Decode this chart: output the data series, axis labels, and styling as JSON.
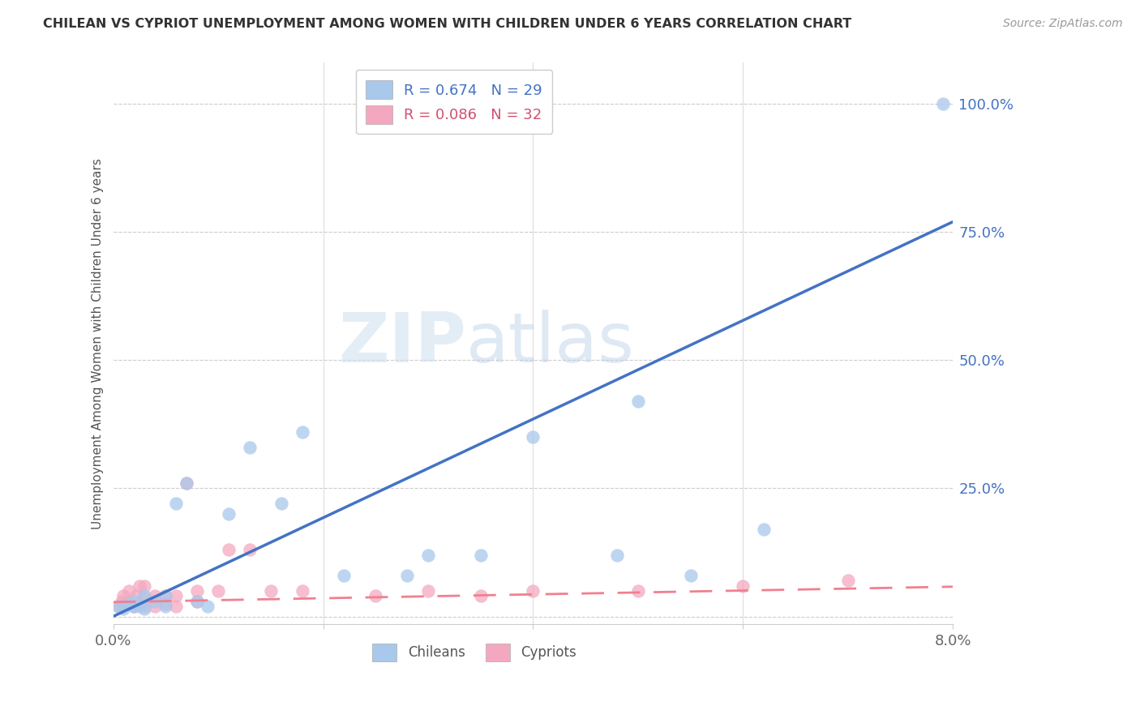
{
  "title": "CHILEAN VS CYPRIOT UNEMPLOYMENT AMONG WOMEN WITH CHILDREN UNDER 6 YEARS CORRELATION CHART",
  "source": "Source: ZipAtlas.com",
  "ylabel": "Unemployment Among Women with Children Under 6 years",
  "xlim": [
    0,
    0.08
  ],
  "ylim": [
    -0.015,
    1.08
  ],
  "yticks": [
    0.0,
    0.25,
    0.5,
    0.75,
    1.0
  ],
  "ytick_labels": [
    "",
    "25.0%",
    "50.0%",
    "75.0%",
    "100.0%"
  ],
  "xtick_positions": [
    0.0,
    0.02,
    0.04,
    0.06,
    0.08
  ],
  "xtick_labels": [
    "0.0%",
    "",
    "",
    "",
    "8.0%"
  ],
  "chilean_R": 0.674,
  "chilean_N": 29,
  "cypriot_R": 0.086,
  "cypriot_N": 32,
  "chilean_color": "#A8C8EC",
  "cypriot_color": "#F4A8C0",
  "regression_blue": "#4472C4",
  "regression_pink": "#F08090",
  "watermark_zip": "ZIP",
  "watermark_atlas": "atlas",
  "chilean_x": [
    0.0005,
    0.001,
    0.0015,
    0.002,
    0.002,
    0.0025,
    0.003,
    0.003,
    0.004,
    0.005,
    0.005,
    0.006,
    0.007,
    0.008,
    0.009,
    0.011,
    0.013,
    0.016,
    0.018,
    0.022,
    0.028,
    0.03,
    0.035,
    0.04,
    0.048,
    0.05,
    0.055,
    0.062,
    0.079
  ],
  "chilean_y": [
    0.02,
    0.015,
    0.025,
    0.02,
    0.03,
    0.02,
    0.015,
    0.04,
    0.03,
    0.02,
    0.04,
    0.22,
    0.26,
    0.03,
    0.02,
    0.2,
    0.33,
    0.22,
    0.36,
    0.08,
    0.08,
    0.12,
    0.12,
    0.35,
    0.12,
    0.42,
    0.08,
    0.17,
    1.0
  ],
  "cypriot_x": [
    0.0005,
    0.0008,
    0.001,
    0.0012,
    0.0015,
    0.002,
    0.0022,
    0.0025,
    0.003,
    0.003,
    0.003,
    0.004,
    0.004,
    0.005,
    0.005,
    0.006,
    0.006,
    0.007,
    0.008,
    0.008,
    0.01,
    0.011,
    0.013,
    0.015,
    0.018,
    0.025,
    0.03,
    0.035,
    0.04,
    0.05,
    0.06,
    0.07
  ],
  "cypriot_y": [
    0.02,
    0.03,
    0.04,
    0.025,
    0.05,
    0.02,
    0.04,
    0.06,
    0.02,
    0.035,
    0.06,
    0.02,
    0.04,
    0.025,
    0.04,
    0.02,
    0.04,
    0.26,
    0.03,
    0.05,
    0.05,
    0.13,
    0.13,
    0.05,
    0.05,
    0.04,
    0.05,
    0.04,
    0.05,
    0.05,
    0.06,
    0.07
  ],
  "blue_line_x": [
    0.0,
    0.08
  ],
  "blue_line_y": [
    0.0,
    0.77
  ],
  "pink_line_x": [
    0.0,
    0.08
  ],
  "pink_line_y": [
    0.028,
    0.058
  ]
}
